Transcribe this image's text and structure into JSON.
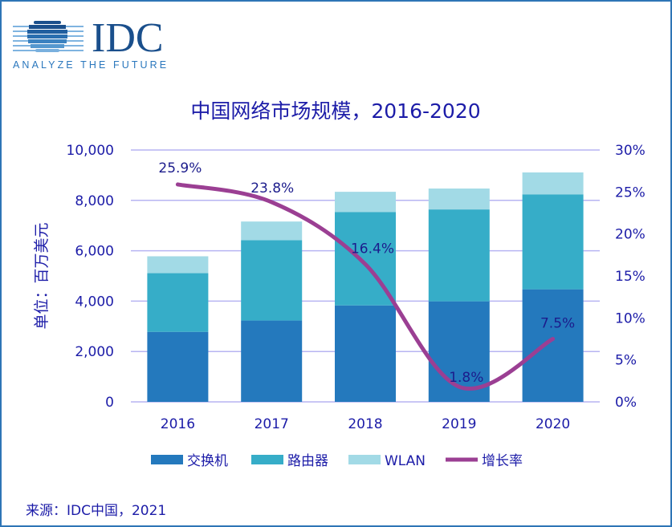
{
  "logo": {
    "text": "IDC",
    "tagline": "ANALYZE THE FUTURE"
  },
  "source": "来源：IDC中国，2021",
  "colors": {
    "switch": "#2479bd",
    "router": "#36adc8",
    "wlan": "#a2dae6",
    "growth": "#9b3f93",
    "grid": "#b7b4f2",
    "text": "#1c1ca8",
    "frame": "#2e75b6"
  },
  "chart_data": {
    "type": "bar",
    "stacked": true,
    "title": "中国网络市场规模，2016-2020",
    "ylabel": "单位：百万美元",
    "categories": [
      "2016",
      "2017",
      "2018",
      "2019",
      "2020"
    ],
    "ylim": [
      0,
      10000
    ],
    "yticks": [
      "0",
      "2,000",
      "4,000",
      "6,000",
      "8,000",
      "10,000"
    ],
    "y2lim": [
      0,
      30
    ],
    "y2ticks": [
      "0%",
      "5%",
      "10%",
      "15%",
      "20%",
      "25%",
      "30%"
    ],
    "grid": true,
    "legend_position": "bottom",
    "series": [
      {
        "name": "交换机",
        "type": "bar",
        "values": [
          2780,
          3230,
          3830,
          3990,
          4470
        ]
      },
      {
        "name": "路由器",
        "type": "bar",
        "values": [
          2330,
          3190,
          3710,
          3650,
          3770
        ]
      },
      {
        "name": "WLAN",
        "type": "bar",
        "values": [
          670,
          740,
          800,
          830,
          870
        ]
      },
      {
        "name": "增长率",
        "type": "line",
        "axis": "right",
        "values": [
          25.9,
          23.8,
          16.4,
          1.8,
          7.5
        ],
        "labels": [
          "25.9%",
          "23.8%",
          "16.4%",
          "1.8%",
          "7.5%"
        ]
      }
    ]
  }
}
